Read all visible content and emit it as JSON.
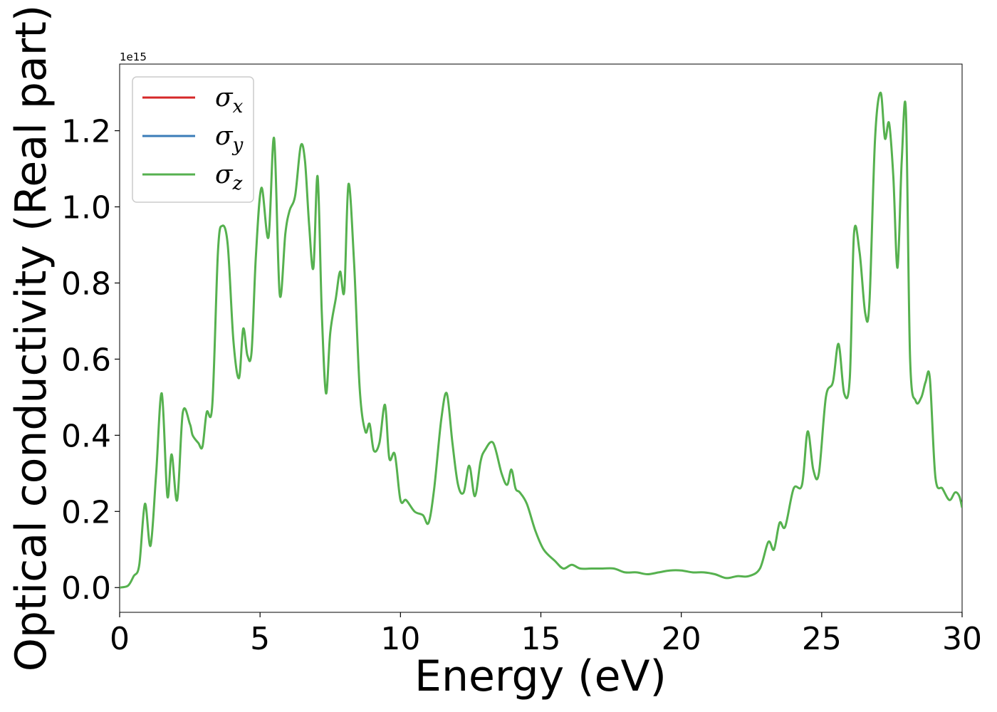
{
  "chart_data": {
    "type": "line",
    "xlabel": "Energy (eV)",
    "ylabel": "Optical conductivity (Real part)",
    "y_offset_label": "1e15",
    "xlim": [
      0,
      30
    ],
    "ylim": [
      -0.065,
      1.375
    ],
    "xticks": [
      0,
      5,
      10,
      15,
      20,
      25,
      30
    ],
    "xtick_labels": [
      "0",
      "5",
      "10",
      "15",
      "20",
      "25",
      "30"
    ],
    "yticks": [
      0.0,
      0.2,
      0.4,
      0.6,
      0.8,
      1.0,
      1.2
    ],
    "ytick_labels": [
      "0.0",
      "0.2",
      "0.4",
      "0.6",
      "0.8",
      "1.0",
      "1.2"
    ],
    "grid": false,
    "legend_position": "top-left",
    "legend": [
      {
        "symbol": "σ",
        "subscript": "x",
        "color": "#d62728"
      },
      {
        "symbol": "σ",
        "subscript": "y",
        "color": "#3a7cb8"
      },
      {
        "symbol": "σ",
        "subscript": "z",
        "color": "#56b14f"
      }
    ],
    "series": [
      {
        "color": "#56b14f",
        "x": [
          0,
          0.3,
          0.5,
          0.7,
          0.9,
          1.1,
          1.3,
          1.5,
          1.7,
          1.85,
          2.05,
          2.25,
          2.5,
          2.6,
          2.8,
          2.95,
          3.1,
          3.3,
          3.5,
          3.65,
          3.85,
          4.05,
          4.25,
          4.4,
          4.55,
          4.7,
          4.85,
          5.05,
          5.3,
          5.5,
          5.7,
          5.9,
          6.05,
          6.25,
          6.45,
          6.6,
          6.75,
          6.9,
          7.05,
          7.2,
          7.35,
          7.5,
          7.7,
          7.85,
          8.0,
          8.15,
          8.35,
          8.55,
          8.75,
          8.9,
          9.05,
          9.25,
          9.45,
          9.6,
          9.8,
          10.0,
          10.2,
          10.5,
          10.8,
          11.0,
          11.2,
          11.45,
          11.65,
          11.85,
          12.05,
          12.25,
          12.45,
          12.65,
          12.85,
          13.0,
          13.3,
          13.6,
          13.8,
          13.95,
          14.1,
          14.25,
          14.5,
          14.8,
          15.1,
          15.5,
          15.8,
          16.1,
          16.4,
          16.8,
          17.2,
          17.6,
          18.0,
          18.4,
          18.8,
          19.2,
          19.6,
          20.0,
          20.4,
          20.8,
          21.2,
          21.6,
          22.0,
          22.4,
          22.8,
          23.1,
          23.3,
          23.5,
          23.7,
          24.0,
          24.3,
          24.5,
          24.7,
          24.9,
          25.15,
          25.4,
          25.6,
          25.8,
          26.0,
          26.15,
          26.35,
          26.55,
          26.7,
          26.9,
          27.1,
          27.25,
          27.4,
          27.55,
          27.7,
          27.85,
          28.0,
          28.15,
          28.35,
          28.55,
          28.7,
          28.85,
          29.05,
          29.3,
          29.55,
          29.75,
          29.9,
          30.0
        ],
        "y": [
          0.0,
          0.005,
          0.03,
          0.06,
          0.22,
          0.11,
          0.3,
          0.51,
          0.24,
          0.35,
          0.23,
          0.46,
          0.43,
          0.4,
          0.38,
          0.37,
          0.46,
          0.48,
          0.88,
          0.95,
          0.9,
          0.65,
          0.55,
          0.68,
          0.61,
          0.62,
          0.87,
          1.05,
          0.92,
          1.18,
          0.77,
          0.93,
          0.99,
          1.03,
          1.16,
          1.12,
          0.95,
          0.84,
          1.08,
          0.72,
          0.51,
          0.67,
          0.76,
          0.83,
          0.78,
          1.06,
          0.85,
          0.52,
          0.41,
          0.43,
          0.36,
          0.38,
          0.48,
          0.34,
          0.35,
          0.23,
          0.23,
          0.2,
          0.19,
          0.17,
          0.26,
          0.44,
          0.51,
          0.38,
          0.27,
          0.25,
          0.32,
          0.24,
          0.33,
          0.36,
          0.38,
          0.3,
          0.27,
          0.31,
          0.26,
          0.25,
          0.22,
          0.15,
          0.1,
          0.07,
          0.05,
          0.06,
          0.05,
          0.05,
          0.05,
          0.05,
          0.04,
          0.04,
          0.035,
          0.04,
          0.045,
          0.045,
          0.04,
          0.04,
          0.035,
          0.025,
          0.03,
          0.03,
          0.05,
          0.12,
          0.1,
          0.17,
          0.16,
          0.26,
          0.27,
          0.41,
          0.31,
          0.3,
          0.5,
          0.54,
          0.64,
          0.51,
          0.55,
          0.93,
          0.88,
          0.72,
          0.75,
          1.18,
          1.3,
          1.18,
          1.22,
          1.08,
          0.84,
          1.12,
          1.25,
          0.6,
          0.49,
          0.5,
          0.54,
          0.55,
          0.29,
          0.26,
          0.23,
          0.25,
          0.24,
          0.21
        ]
      }
    ]
  }
}
